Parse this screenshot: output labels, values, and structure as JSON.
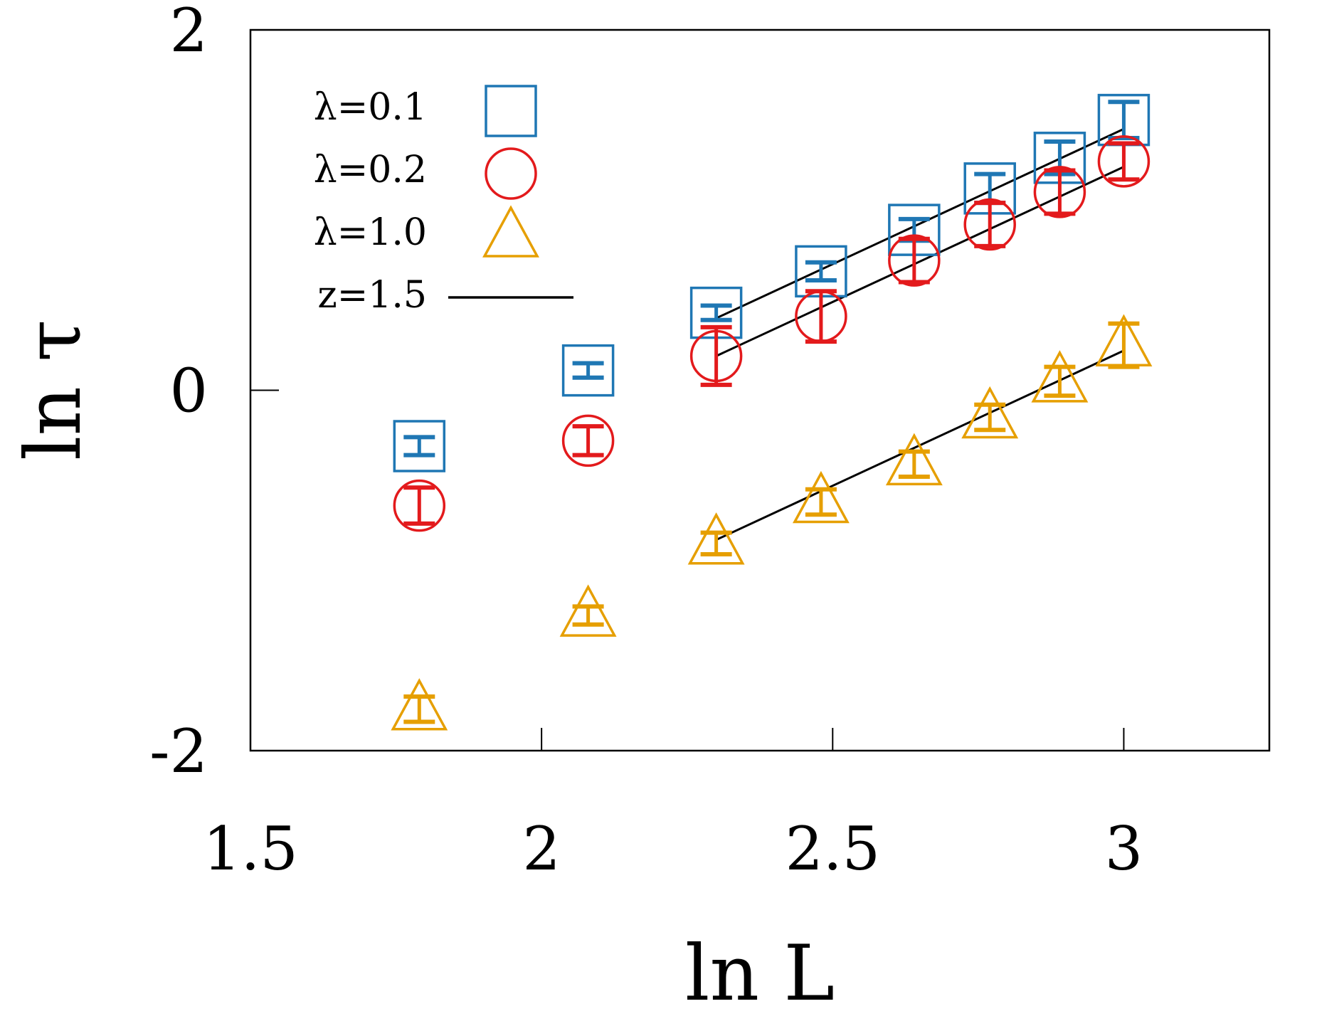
{
  "chart_data": {
    "type": "scatter",
    "title": "",
    "xlabel": "ln L",
    "ylabel": "ln τ",
    "xlim": [
      1.5,
      3.25
    ],
    "ylim": [
      -2,
      2
    ],
    "xticks": [
      1.5,
      2,
      2.5,
      3
    ],
    "yticks": [
      -2,
      0,
      2
    ],
    "xtick_labels": [
      "1.5",
      "2",
      "2.5",
      "3"
    ],
    "ytick_labels": [
      "-2",
      "0",
      "2"
    ],
    "grid": false,
    "legend_position": "top-left",
    "series": [
      {
        "name": "λ=0.1",
        "marker": "square",
        "color": "#1f77b4",
        "points": [
          {
            "x": 1.79,
            "y": -0.31,
            "err": 0.05
          },
          {
            "x": 2.08,
            "y": 0.11,
            "err": 0.04
          },
          {
            "x": 2.3,
            "y": 0.43,
            "err": 0.04
          },
          {
            "x": 2.48,
            "y": 0.66,
            "err": 0.05
          },
          {
            "x": 2.64,
            "y": 0.89,
            "err": 0.06
          },
          {
            "x": 2.77,
            "y": 1.12,
            "err": 0.08
          },
          {
            "x": 2.89,
            "y": 1.29,
            "err": 0.09
          },
          {
            "x": 3.0,
            "y": 1.5,
            "err": 0.1
          }
        ]
      },
      {
        "name": "λ=0.2",
        "marker": "circle",
        "color": "#e31a1c",
        "points": [
          {
            "x": 1.79,
            "y": -0.64,
            "err": 0.1
          },
          {
            "x": 2.08,
            "y": -0.28,
            "err": 0.08
          },
          {
            "x": 2.3,
            "y": 0.19,
            "err": 0.16
          },
          {
            "x": 2.48,
            "y": 0.41,
            "err": 0.14
          },
          {
            "x": 2.64,
            "y": 0.72,
            "err": 0.12
          },
          {
            "x": 2.77,
            "y": 0.92,
            "err": 0.12
          },
          {
            "x": 2.89,
            "y": 1.1,
            "err": 0.12
          },
          {
            "x": 3.0,
            "y": 1.27,
            "err": 0.1
          }
        ]
      },
      {
        "name": "λ=1.0",
        "marker": "triangle",
        "color": "#e69f00",
        "points": [
          {
            "x": 1.79,
            "y": -1.77,
            "err": 0.07
          },
          {
            "x": 2.08,
            "y": -1.25,
            "err": 0.05
          },
          {
            "x": 2.3,
            "y": -0.85,
            "err": 0.06
          },
          {
            "x": 2.48,
            "y": -0.62,
            "err": 0.07
          },
          {
            "x": 2.64,
            "y": -0.41,
            "err": 0.07
          },
          {
            "x": 2.77,
            "y": -0.15,
            "err": 0.07
          },
          {
            "x": 2.89,
            "y": 0.05,
            "err": 0.08
          },
          {
            "x": 3.0,
            "y": 0.25,
            "err": 0.12
          }
        ]
      }
    ],
    "fit_lines": [
      {
        "name": "z=1.5",
        "slope": 1.5,
        "x": [
          2.3,
          3.0
        ],
        "y": [
          0.4,
          1.45
        ]
      },
      {
        "name": "z=1.5",
        "slope": 1.5,
        "x": [
          2.3,
          3.0
        ],
        "y": [
          0.19,
          1.24
        ]
      },
      {
        "name": "z=1.5",
        "slope": 1.5,
        "x": [
          2.3,
          3.0
        ],
        "y": [
          -0.83,
          0.22
        ]
      }
    ],
    "legend": [
      {
        "label": "λ=0.1",
        "marker": "square",
        "color": "#1f77b4"
      },
      {
        "label": "λ=0.2",
        "marker": "circle",
        "color": "#e31a1c"
      },
      {
        "label": "λ=1.0",
        "marker": "triangle",
        "color": "#e69f00"
      },
      {
        "label": "z=1.5",
        "marker": "line",
        "color": "#000000"
      }
    ]
  }
}
